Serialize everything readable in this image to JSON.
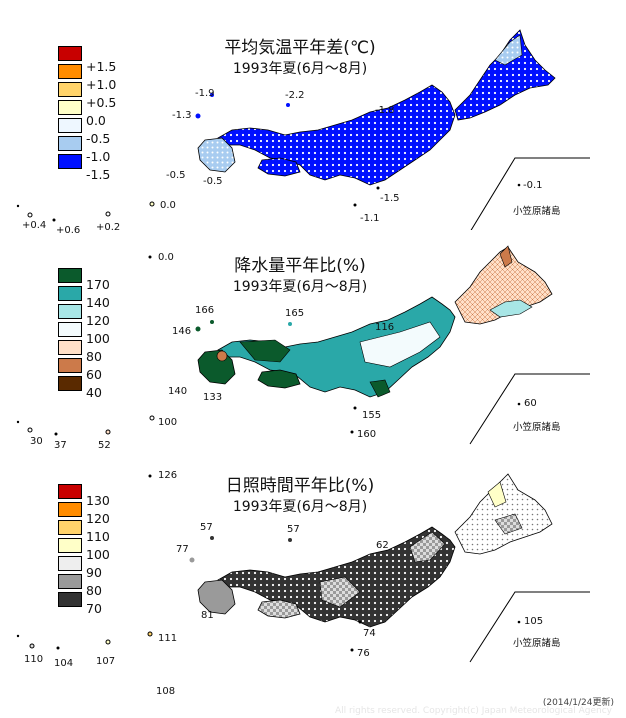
{
  "panels": [
    {
      "title": "平均気温平年差(℃)",
      "subtitle": "1993年夏(6月～8月)",
      "legend": [
        "+1.5",
        "+1.0",
        "+0.5",
        "0.0",
        "-0.5",
        "-1.0",
        "-1.5"
      ],
      "legend_colors": [
        "#c80000",
        "#ff8c00",
        "#ffd36b",
        "#ffffc8",
        "#eef7ff",
        "#a8ccf0",
        "#0010ff"
      ],
      "values": [
        "-1.9",
        "-2.2",
        "-1.3",
        "-1.8",
        "-0.5",
        "-0.5",
        "-1.5",
        "-1.1",
        "-0.1",
        "0.0",
        "+0.4",
        "+0.6",
        "+0.2"
      ],
      "island_label": "小笠原諸島"
    },
    {
      "title": "降水量平年比(%)",
      "subtitle": "1993年夏(6月～8月)",
      "legend": [
        "170",
        "140",
        "120",
        "100",
        "80",
        "60",
        "40"
      ],
      "legend_colors": [
        "#0b5a2c",
        "#2aa8a8",
        "#a8e6e6",
        "#f3fbfd",
        "#ffe0c8",
        "#cc7a4a",
        "#5a2a00"
      ],
      "values": [
        "0.0",
        "166",
        "165",
        "146",
        "116",
        "140",
        "133",
        "155",
        "160",
        "60",
        "30",
        "37",
        "52",
        "100"
      ],
      "island_label": "小笠原諸島"
    },
    {
      "title": "日照時間平年比(%)",
      "subtitle": "1993年夏(6月～8月)",
      "legend": [
        "130",
        "120",
        "110",
        "100",
        "90",
        "80",
        "70"
      ],
      "legend_colors": [
        "#c80000",
        "#ff8c00",
        "#ffd36b",
        "#ffffc8",
        "#eeeeee",
        "#9a9a9a",
        "#333333"
      ],
      "values": [
        "126",
        "57",
        "57",
        "77",
        "62",
        "81",
        "74",
        "76",
        "105",
        "110",
        "104",
        "107",
        "111",
        "108"
      ],
      "island_label": "小笠原諸島"
    }
  ],
  "footer": "(2014/1/24更新)",
  "copyright": "All rights reserved. Copyright(c) Japan Meteorological Agency"
}
